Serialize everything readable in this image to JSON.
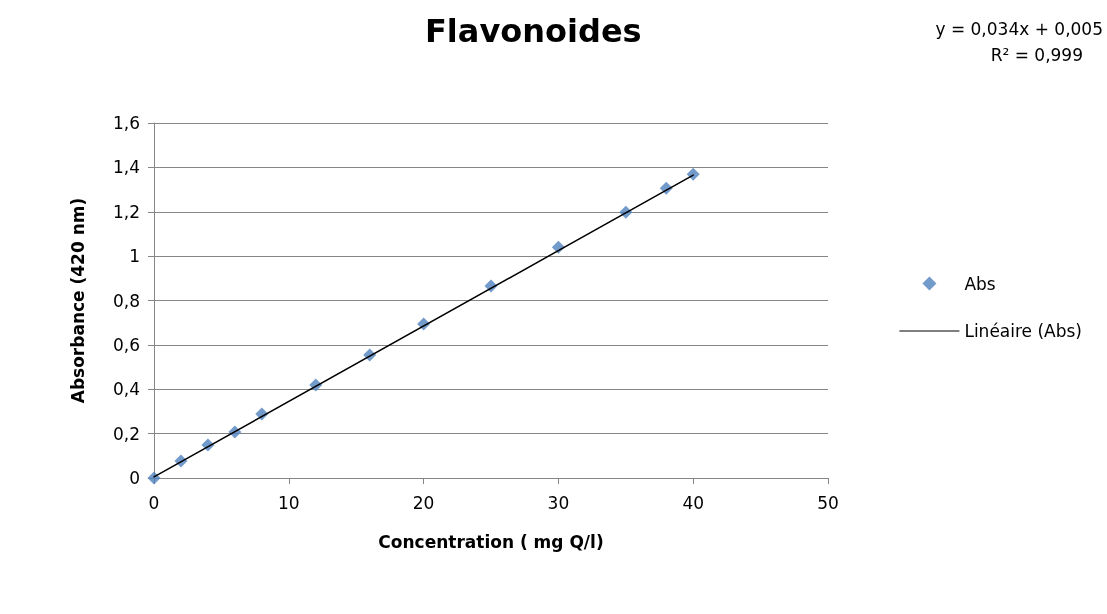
{
  "chart_data": {
    "type": "scatter",
    "title": "Flavonoides",
    "xlabel": "Concentration ( mg Q/l)",
    "ylabel": "Absorbance (420 nm)",
    "annotations": [
      "y = 0,034x + 0,005",
      "R² = 0,999"
    ],
    "x": [
      0,
      2,
      4,
      6,
      8,
      12,
      16,
      20,
      25,
      30,
      35,
      38,
      40
    ],
    "series": [
      {
        "name": "Abs",
        "type": "scatter",
        "color": "#4f81bd",
        "marker": "diamond",
        "values": [
          0,
          0.077,
          0.149,
          0.207,
          0.288,
          0.419,
          0.554,
          0.694,
          0.865,
          1.04,
          1.198,
          1.306,
          1.369
        ]
      },
      {
        "name": "Linéaire (Abs)",
        "type": "line",
        "color": "#000000",
        "marker": "none",
        "line_style": "solid",
        "x": [
          0,
          40
        ],
        "values": [
          0.005,
          1.365
        ]
      }
    ],
    "xlim": [
      0,
      50
    ],
    "xticks": [
      0,
      10,
      20,
      30,
      40,
      50
    ],
    "ylim": [
      0,
      1.6
    ],
    "yticks": [
      0,
      {
        "value": 0.2,
        "label": "0,2"
      },
      {
        "value": 0.4,
        "label": "0,4"
      },
      {
        "value": 0.6,
        "label": "0,6"
      },
      {
        "value": 0.8,
        "label": "0,8"
      },
      1,
      {
        "value": 1.2,
        "label": "1,2"
      },
      {
        "value": 1.4,
        "label": "1,4"
      },
      {
        "value": 1.6,
        "label": "1,6"
      }
    ],
    "grid": "y",
    "legend": "right"
  }
}
